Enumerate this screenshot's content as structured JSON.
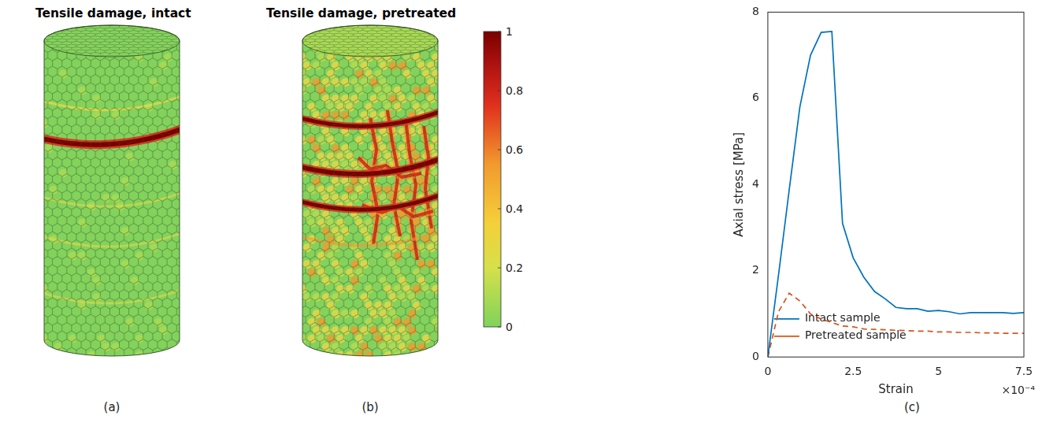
{
  "panels": [
    {
      "title": "Tensile damage, intact",
      "label": "(a)"
    },
    {
      "title": "Tensile damage, pretreated",
      "label": "(b)"
    }
  ],
  "colorbar": {
    "range": [
      0,
      1
    ],
    "ticks": [
      0,
      0.2,
      0.4,
      0.6,
      0.8,
      1
    ]
  },
  "chart_data": {
    "type": "line",
    "label": "(c)",
    "x_label": "Strain",
    "y_label": "Axial stress [MPa]",
    "x_multiplier": "×10⁻⁴",
    "xlim": [
      0,
      0.00075
    ],
    "xticks": [
      {
        "value": 0,
        "label": "0"
      },
      {
        "value": 0.00025,
        "label": "2.5"
      },
      {
        "value": 0.0005,
        "label": "5"
      },
      {
        "value": 0.00075,
        "label": "7.5"
      }
    ],
    "ylim": [
      0,
      8
    ],
    "yticks": [
      0,
      2,
      4,
      6,
      8
    ],
    "grid": false,
    "legend": "upper right",
    "x": [
      0,
      3.125e-05,
      6.25e-05,
      9.375e-05,
      0.000125,
      0.00015625,
      0.0001875,
      0.00021875,
      0.00025,
      0.00028125,
      0.0003125,
      0.00034375,
      0.000375,
      0.00040625,
      0.0004375,
      0.00046875,
      0.0005,
      0.00053125,
      0.0005625,
      0.00059375,
      0.000625,
      0.00065625,
      0.0006875,
      0.00071875,
      0.00075
    ],
    "series": [
      {
        "name": "Intact sample",
        "color": "#0072bd",
        "line_style": "solid",
        "values": [
          0,
          1.9,
          3.87,
          5.8,
          7.0,
          7.53,
          7.55,
          3.1,
          2.3,
          1.85,
          1.52,
          1.35,
          1.15,
          1.12,
          1.12,
          1.06,
          1.08,
          1.05,
          1.0,
          1.03,
          1.03,
          1.03,
          1.03,
          1.01,
          1.03
        ]
      },
      {
        "name": "Pretreated sample",
        "color": "#d95319",
        "line_style": "dashed",
        "values": [
          0,
          1.05,
          1.48,
          1.3,
          1.0,
          0.88,
          0.8,
          0.72,
          0.7,
          0.65,
          0.64,
          0.63,
          0.62,
          0.61,
          0.6,
          0.6,
          0.58,
          0.58,
          0.57,
          0.57,
          0.56,
          0.56,
          0.55,
          0.55,
          0.55
        ]
      }
    ]
  }
}
